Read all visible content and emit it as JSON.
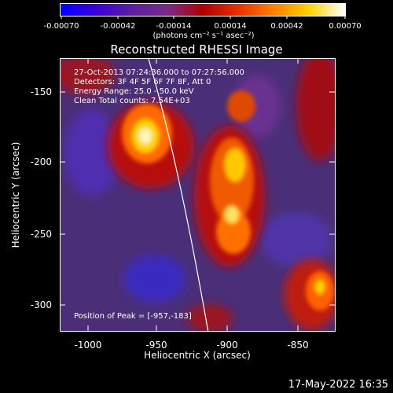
{
  "colorbar": {
    "ticks": [
      "-0.00070",
      "-0.00042",
      "-0.00014",
      "0.00014",
      "0.00042",
      "0.00070"
    ],
    "units": "(photons cm⁻² s⁻¹ asec⁻²)",
    "colors": [
      "#0000ff",
      "#3a00d8",
      "#5b1fa0",
      "#7a2a8a",
      "#b00000",
      "#e83000",
      "#ff8000",
      "#ffd400",
      "#ffffff"
    ]
  },
  "title": "Reconstructed RHESSI Image",
  "annotations": {
    "time_range": "27-Oct-2013 07:24:36.000 to 07:27:56.000",
    "detectors": "Detectors: 3F 4F 5F 6F 7F 8F, Att 0",
    "energy_range": "Energy Range: 25.0 - 50.0 keV",
    "algorithm": "Clean     Total counts: 7.54E+03",
    "peak_position": "Position of Peak = [-957,-183]"
  },
  "axes": {
    "xlabel": "Heliocentric X (arcsec)",
    "ylabel": "Heliocentric Y (arcsec)",
    "xticks": [
      "-1000",
      "-950",
      "-900",
      "-850"
    ],
    "yticks": [
      "-150",
      "-200",
      "-250",
      "-300"
    ],
    "xlim": [
      -1016,
      -816
    ],
    "ylim": [
      -320,
      -120
    ]
  },
  "footer": "17-May-2022 16:35"
}
